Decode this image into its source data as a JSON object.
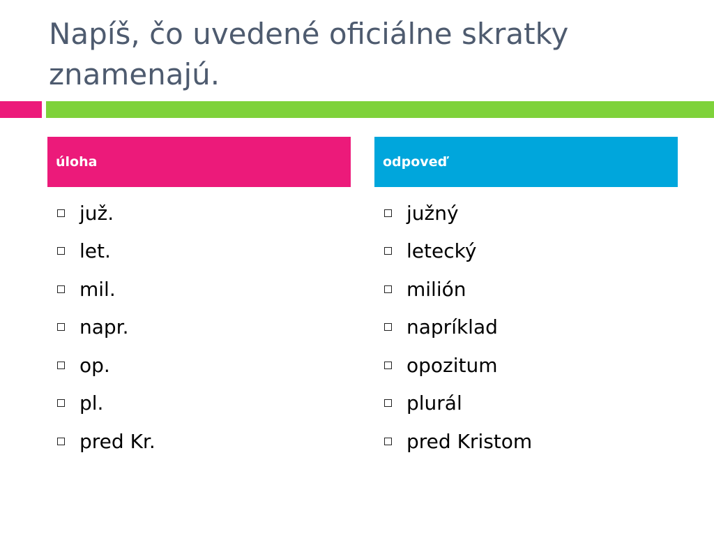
{
  "slide": {
    "title": "Napíš, čo uvedené oficiálne skratky znamenajú."
  },
  "colors": {
    "pink": "#ec1a7a",
    "green": "#7ed23a",
    "blue": "#00a6dc"
  },
  "table": {
    "headers": {
      "left": "úloha",
      "right": "odpoveď"
    },
    "rows": [
      {
        "task": "juž.",
        "answer": "južný"
      },
      {
        "task": "let.",
        "answer": "letecký"
      },
      {
        "task": "mil.",
        "answer": "milión"
      },
      {
        "task": "napr.",
        "answer": "napríklad"
      },
      {
        "task": "op.",
        "answer": "opozitum"
      },
      {
        "task": "pl.",
        "answer": "plurál"
      },
      {
        "task": "pred Kr.",
        "answer": "pred Kristom"
      }
    ]
  }
}
